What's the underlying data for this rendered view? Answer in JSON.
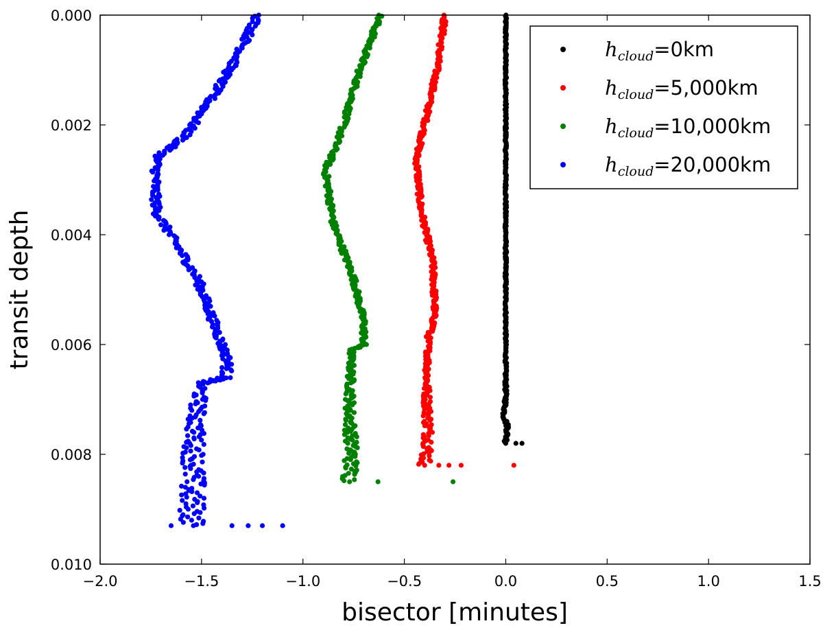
{
  "chart_data": {
    "type": "scatter",
    "title": "",
    "xlabel": "bisector [minutes]",
    "ylabel": "transit depth",
    "xlim": [
      -2.0,
      1.5
    ],
    "ylim": [
      0.01,
      0.0
    ],
    "y_inverted": true,
    "x_ticks": [
      "−2.0",
      "−1.5",
      "−1.0",
      "−0.5",
      "0.0",
      "0.5",
      "1.0",
      "1.5"
    ],
    "x_tick_values": [
      -2.0,
      -1.5,
      -1.0,
      -0.5,
      0.0,
      0.5,
      1.0,
      1.5
    ],
    "y_ticks": [
      "0.000",
      "0.002",
      "0.004",
      "0.006",
      "0.008",
      "0.010"
    ],
    "y_tick_values": [
      0.0,
      0.002,
      0.004,
      0.006,
      0.008,
      0.01
    ],
    "grid": false,
    "legend_position": "top-right",
    "series": [
      {
        "name_symbol": "h",
        "name_subscript": "cloud",
        "name_value": "=0km",
        "color": "#000000",
        "points": [
          [
            0.0,
            0.0
          ],
          [
            0.0,
            0.001
          ],
          [
            0.0,
            0.002
          ],
          [
            0.0,
            0.003
          ],
          [
            0.0,
            0.004
          ],
          [
            0.0,
            0.005
          ],
          [
            0.0,
            0.006
          ],
          [
            0.0,
            0.007
          ],
          [
            -0.01,
            0.0073
          ],
          [
            0.01,
            0.0075
          ],
          [
            0.0,
            0.0078
          ]
        ],
        "outliers": [
          [
            0.05,
            0.0078
          ],
          [
            0.08,
            0.0078
          ]
        ],
        "spread": 0.004
      },
      {
        "name_symbol": "h",
        "name_subscript": "cloud",
        "name_value": "=5,000km",
        "color": "#ff0000",
        "points": [
          [
            -0.3,
            0.0
          ],
          [
            -0.34,
            0.001
          ],
          [
            -0.4,
            0.002
          ],
          [
            -0.44,
            0.0026
          ],
          [
            -0.42,
            0.0035
          ],
          [
            -0.36,
            0.0045
          ],
          [
            -0.35,
            0.0053
          ],
          [
            -0.36,
            0.0057
          ],
          [
            -0.38,
            0.0058
          ],
          [
            -0.39,
            0.0068
          ],
          [
            -0.38,
            0.0078
          ],
          [
            -0.4,
            0.0082
          ]
        ],
        "outliers": [
          [
            -0.33,
            0.0082
          ],
          [
            -0.28,
            0.0082
          ],
          [
            -0.22,
            0.0082
          ],
          [
            0.04,
            0.0082
          ]
        ],
        "spread": 0.012
      },
      {
        "name_symbol": "h",
        "name_subscript": "cloud",
        "name_value": "=10,000km",
        "color": "#008000",
        "points": [
          [
            -0.62,
            0.0
          ],
          [
            -0.72,
            0.001
          ],
          [
            -0.8,
            0.002
          ],
          [
            -0.86,
            0.0026
          ],
          [
            -0.89,
            0.0028
          ],
          [
            -0.85,
            0.0038
          ],
          [
            -0.75,
            0.0048
          ],
          [
            -0.7,
            0.0056
          ],
          [
            -0.7,
            0.006
          ],
          [
            -0.76,
            0.0061
          ],
          [
            -0.77,
            0.0072
          ],
          [
            -0.76,
            0.008
          ],
          [
            -0.77,
            0.0085
          ]
        ],
        "outliers": [
          [
            -0.63,
            0.0085
          ],
          [
            -0.26,
            0.0085
          ]
        ],
        "spread": 0.014
      },
      {
        "name_symbol": "h",
        "name_subscript": "cloud",
        "name_value": "=20,000km",
        "color": "#0000ff",
        "points": [
          [
            -1.22,
            0.0
          ],
          [
            -1.33,
            0.0008
          ],
          [
            -1.45,
            0.0015
          ],
          [
            -1.58,
            0.0022
          ],
          [
            -1.72,
            0.0026
          ],
          [
            -1.73,
            0.0032
          ],
          [
            -1.72,
            0.0036
          ],
          [
            -1.62,
            0.0042
          ],
          [
            -1.52,
            0.0048
          ],
          [
            -1.46,
            0.0054
          ],
          [
            -1.41,
            0.0059
          ],
          [
            -1.37,
            0.0063
          ],
          [
            -1.38,
            0.0066
          ],
          [
            -1.5,
            0.0067
          ],
          [
            -1.53,
            0.0074
          ],
          [
            -1.54,
            0.0082
          ],
          [
            -1.55,
            0.0088
          ],
          [
            -1.54,
            0.0093
          ]
        ],
        "outliers": [
          [
            -1.35,
            0.0093
          ],
          [
            -1.27,
            0.0093
          ],
          [
            -1.2,
            0.0093
          ],
          [
            -1.1,
            0.0093
          ],
          [
            -1.65,
            0.0093
          ]
        ],
        "spread": 0.022
      }
    ]
  }
}
